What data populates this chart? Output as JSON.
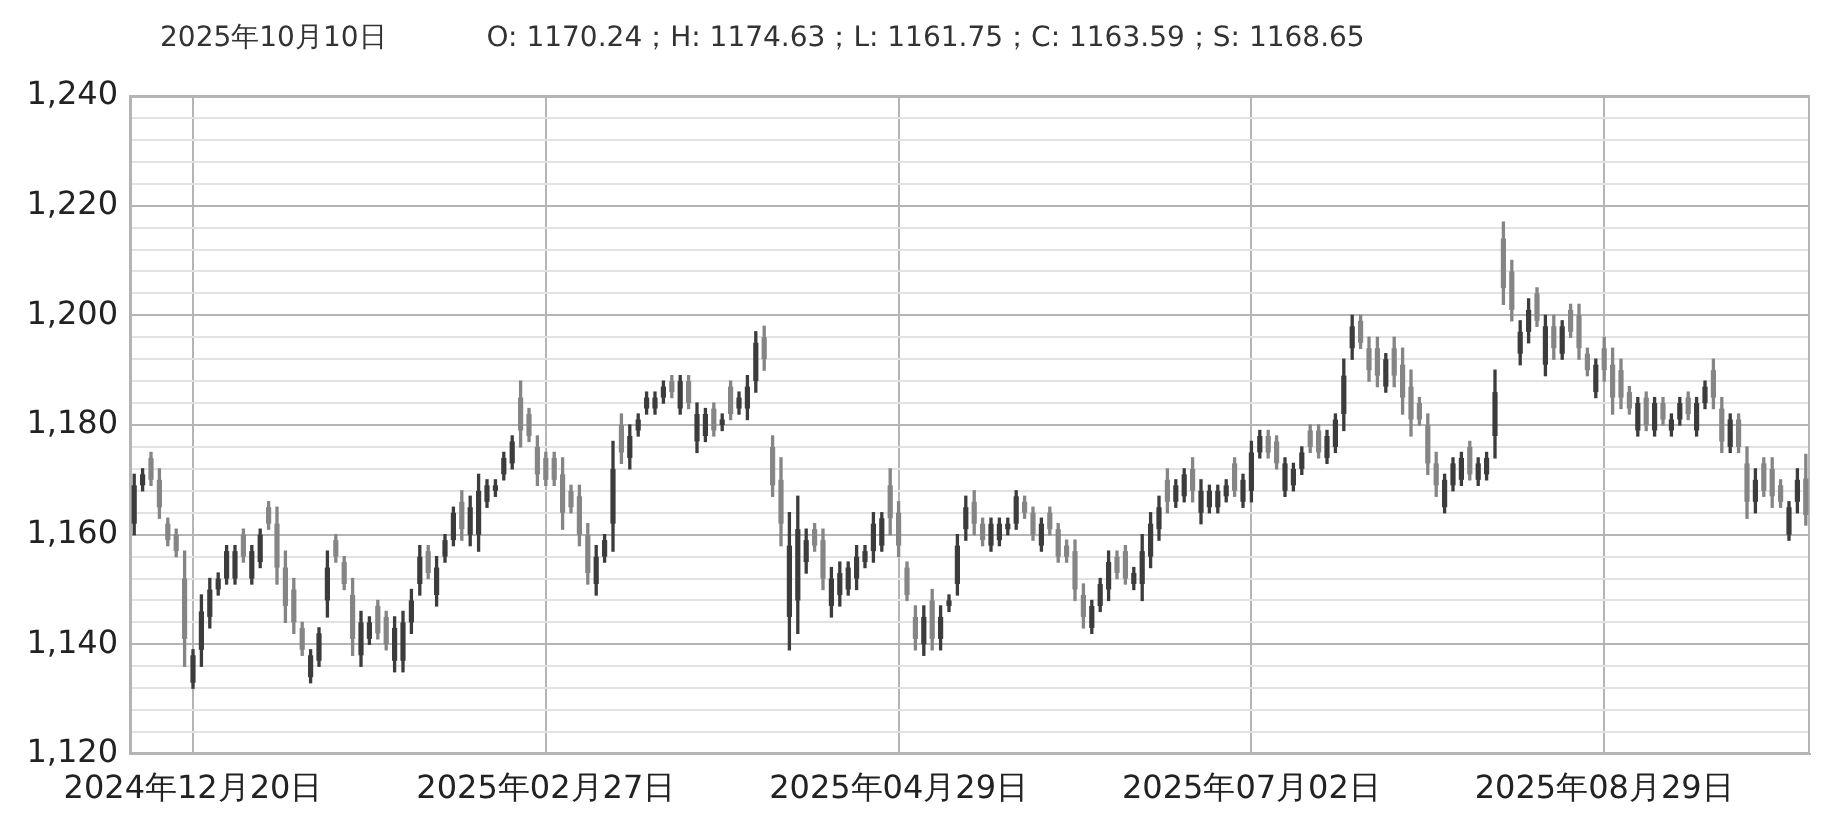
{
  "chart_data": {
    "type": "candlestick",
    "title": "2025年10月10日",
    "subtitle": "O: 1170.24；H: 1174.63；L: 1161.75；C: 1163.59；S: 1168.65",
    "grid": true,
    "ylim": [
      1120,
      1240
    ],
    "yticks": [
      {
        "value": 1120,
        "label": "1,120"
      },
      {
        "value": 1124,
        "label": null
      },
      {
        "value": 1128,
        "label": null
      },
      {
        "value": 1132,
        "label": null
      },
      {
        "value": 1136,
        "label": null
      },
      {
        "value": 1140,
        "label": "1,140"
      },
      {
        "value": 1144,
        "label": null
      },
      {
        "value": 1148,
        "label": null
      },
      {
        "value": 1152,
        "label": null
      },
      {
        "value": 1156,
        "label": null
      },
      {
        "value": 1160,
        "label": "1,160"
      },
      {
        "value": 1164,
        "label": null
      },
      {
        "value": 1168,
        "label": null
      },
      {
        "value": 1172,
        "label": null
      },
      {
        "value": 1176,
        "label": null
      },
      {
        "value": 1180,
        "label": "1,180"
      },
      {
        "value": 1184,
        "label": null
      },
      {
        "value": 1188,
        "label": null
      },
      {
        "value": 1192,
        "label": null
      },
      {
        "value": 1196,
        "label": null
      },
      {
        "value": 1200,
        "label": "1,200"
      },
      {
        "value": 1204,
        "label": null
      },
      {
        "value": 1208,
        "label": null
      },
      {
        "value": 1212,
        "label": null
      },
      {
        "value": 1216,
        "label": null
      },
      {
        "value": 1220,
        "label": "1,220"
      },
      {
        "value": 1224,
        "label": null
      },
      {
        "value": 1228,
        "label": null
      },
      {
        "value": 1232,
        "label": null
      },
      {
        "value": 1236,
        "label": null
      },
      {
        "value": 1240,
        "label": "1,240"
      }
    ],
    "categories": [
      null,
      null,
      null,
      null,
      null,
      null,
      null,
      "2024年12月20日",
      null,
      null,
      null,
      null,
      null,
      null,
      null,
      null,
      null,
      null,
      null,
      null,
      null,
      null,
      null,
      null,
      null,
      null,
      null,
      null,
      null,
      null,
      null,
      null,
      null,
      null,
      null,
      null,
      null,
      null,
      null,
      null,
      null,
      null,
      null,
      null,
      null,
      null,
      null,
      null,
      null,
      "2025年02月27日",
      null,
      null,
      null,
      null,
      null,
      null,
      null,
      null,
      null,
      null,
      null,
      null,
      null,
      null,
      null,
      null,
      null,
      null,
      null,
      null,
      null,
      null,
      null,
      null,
      null,
      null,
      null,
      null,
      null,
      null,
      null,
      null,
      null,
      null,
      null,
      null,
      null,
      null,
      null,
      null,
      null,
      "2025年04月29日",
      null,
      null,
      null,
      null,
      null,
      null,
      null,
      null,
      null,
      null,
      null,
      null,
      null,
      null,
      null,
      null,
      null,
      null,
      null,
      null,
      null,
      null,
      null,
      null,
      null,
      null,
      null,
      null,
      null,
      null,
      null,
      null,
      null,
      null,
      null,
      null,
      null,
      null,
      null,
      null,
      null,
      "2025年07月02日",
      null,
      null,
      null,
      null,
      null,
      null,
      null,
      null,
      null,
      null,
      null,
      null,
      null,
      null,
      null,
      null,
      null,
      null,
      null,
      null,
      null,
      null,
      null,
      null,
      null,
      null,
      null,
      null,
      null,
      null,
      null,
      null,
      null,
      null,
      null,
      null,
      null,
      null,
      null,
      null,
      null,
      "2025年08月29日",
      null,
      null,
      null,
      null,
      null,
      null,
      null,
      null,
      null,
      null,
      null,
      null,
      null,
      null,
      null,
      null,
      null,
      null,
      null,
      null,
      null,
      null,
      null,
      null
    ],
    "colors": [
      "#3c3c3c",
      "#3c3c3c",
      "#858585",
      "#858585",
      "#858585",
      "#858585",
      "#858585",
      "#3c3c3c",
      "#3c3c3c",
      "#3c3c3c",
      "#3c3c3c",
      "#3c3c3c",
      "#3c3c3c",
      "#858585",
      "#3c3c3c",
      "#3c3c3c",
      "#858585",
      "#858585",
      "#858585",
      "#858585",
      "#858585",
      "#3c3c3c",
      "#3c3c3c",
      "#3c3c3c",
      "#858585",
      "#858585",
      "#858585",
      "#3c3c3c",
      "#3c3c3c",
      "#858585",
      "#858585",
      "#3c3c3c",
      "#3c3c3c",
      "#3c3c3c",
      "#3c3c3c",
      "#858585",
      "#3c3c3c",
      "#3c3c3c",
      "#3c3c3c",
      "#858585",
      "#3c3c3c",
      "#3c3c3c",
      "#3c3c3c",
      "#3c3c3c",
      "#3c3c3c",
      "#3c3c3c",
      "#858585",
      "#858585",
      "#858585",
      "#858585",
      "#858585",
      "#858585",
      "#858585",
      "#858585",
      "#858585",
      "#3c3c3c",
      "#3c3c3c",
      "#3c3c3c",
      "#858585",
      "#3c3c3c",
      "#3c3c3c",
      "#3c3c3c",
      "#3c3c3c",
      "#3c3c3c",
      "#858585",
      "#3c3c3c",
      "#858585",
      "#3c3c3c",
      "#3c3c3c",
      "#858585",
      "#3c3c3c",
      "#858585",
      "#3c3c3c",
      "#3c3c3c",
      "#3c3c3c",
      "#858585",
      "#858585",
      "#858585",
      "#3c3c3c",
      "#3c3c3c",
      "#3c3c3c",
      "#858585",
      "#858585",
      "#3c3c3c",
      "#3c3c3c",
      "#3c3c3c",
      "#3c3c3c",
      "#3c3c3c",
      "#3c3c3c",
      "#3c3c3c",
      "#858585",
      "#858585",
      "#858585",
      "#858585",
      "#3c3c3c",
      "#858585",
      "#3c3c3c",
      "#3c3c3c",
      "#3c3c3c",
      "#3c3c3c",
      "#858585",
      "#858585",
      "#3c3c3c",
      "#3c3c3c",
      "#3c3c3c",
      "#3c3c3c",
      "#858585",
      "#858585",
      "#3c3c3c",
      "#858585",
      "#858585",
      "#858585",
      "#858585",
      "#858585",
      "#3c3c3c",
      "#3c3c3c",
      "#3c3c3c",
      "#858585",
      "#858585",
      "#3c3c3c",
      "#3c3c3c",
      "#3c3c3c",
      "#3c3c3c",
      "#858585",
      "#3c3c3c",
      "#3c3c3c",
      "#858585",
      "#3c3c3c",
      "#3c3c3c",
      "#3c3c3c",
      "#3c3c3c",
      "#858585",
      "#3c3c3c",
      "#3c3c3c",
      "#3c3c3c",
      "#858585",
      "#858585",
      "#3c3c3c",
      "#3c3c3c",
      "#3c3c3c",
      "#858585",
      "#858585",
      "#3c3c3c",
      "#3c3c3c",
      "#3c3c3c",
      "#3c3c3c",
      "#858585",
      "#858585",
      "#858585",
      "#3c3c3c",
      "#858585",
      "#858585",
      "#858585",
      "#858585",
      "#858585",
      "#858585",
      "#3c3c3c",
      "#3c3c3c",
      "#3c3c3c",
      "#858585",
      "#3c3c3c",
      "#3c3c3c",
      "#3c3c3c",
      "#858585",
      "#858585",
      "#3c3c3c",
      "#3c3c3c",
      "#858585",
      "#3c3c3c",
      "#858585",
      "#3c3c3c",
      "#858585",
      "#858585",
      "#858585",
      "#3c3c3c",
      "#858585",
      "#858585",
      "#858585",
      "#858585",
      "#3c3c3c",
      "#858585",
      "#3c3c3c",
      "#858585",
      "#3c3c3c",
      "#3c3c3c",
      "#858585",
      "#3c3c3c",
      "#3c3c3c",
      "#858585",
      "#858585",
      "#3c3c3c",
      "#858585",
      "#858585",
      "#3c3c3c",
      "#858585",
      "#858585",
      "#858585",
      "#3c3c3c",
      "#3c3c3c",
      "#858585"
    ],
    "ohlc": [
      [
        1162,
        1171,
        1160,
        1169
      ],
      [
        1169,
        1172,
        1168,
        1171
      ],
      [
        1174,
        1175,
        1169,
        1170
      ],
      [
        1170,
        1172,
        1163,
        1165
      ],
      [
        1162,
        1163,
        1158,
        1159
      ],
      [
        1160,
        1161,
        1156,
        1157
      ],
      [
        1152,
        1157,
        1136,
        1141
      ],
      [
        1133,
        1139,
        1132,
        1138
      ],
      [
        1139,
        1149,
        1136,
        1146
      ],
      [
        1145,
        1152,
        1143,
        1150
      ],
      [
        1150,
        1153,
        1149,
        1152
      ],
      [
        1152,
        1158,
        1151,
        1157
      ],
      [
        1152,
        1158,
        1151,
        1157
      ],
      [
        1160,
        1161,
        1155,
        1156
      ],
      [
        1152,
        1158,
        1151,
        1157
      ],
      [
        1155,
        1161,
        1154,
        1160
      ],
      [
        1165,
        1166,
        1161,
        1162
      ],
      [
        1162,
        1165,
        1151,
        1154
      ],
      [
        1154,
        1157,
        1144,
        1147
      ],
      [
        1150,
        1152,
        1142,
        1144
      ],
      [
        1143,
        1144,
        1138,
        1139
      ],
      [
        1134,
        1139,
        1133,
        1138
      ],
      [
        1137,
        1143,
        1136,
        1142
      ],
      [
        1148,
        1157,
        1145,
        1154
      ],
      [
        1159,
        1160,
        1155,
        1156
      ],
      [
        1155,
        1156,
        1150,
        1151
      ],
      [
        1149,
        1152,
        1138,
        1141
      ],
      [
        1138,
        1146,
        1136,
        1144
      ],
      [
        1141,
        1145,
        1140,
        1144
      ],
      [
        1147,
        1148,
        1141,
        1142
      ],
      [
        1145,
        1146,
        1139,
        1140
      ],
      [
        1137,
        1145,
        1135,
        1143
      ],
      [
        1137,
        1146,
        1135,
        1144
      ],
      [
        1144,
        1150,
        1142,
        1148
      ],
      [
        1151,
        1158,
        1149,
        1156
      ],
      [
        1157,
        1158,
        1152,
        1153
      ],
      [
        1149,
        1156,
        1147,
        1154
      ],
      [
        1156,
        1160,
        1155,
        1159
      ],
      [
        1159,
        1165,
        1158,
        1164
      ],
      [
        1166,
        1168,
        1159,
        1161
      ],
      [
        1160,
        1167,
        1158,
        1165
      ],
      [
        1160,
        1171,
        1157,
        1168
      ],
      [
        1166,
        1170,
        1165,
        1169
      ],
      [
        1168,
        1170,
        1167,
        1169
      ],
      [
        1171,
        1175,
        1170,
        1174
      ],
      [
        1173,
        1178,
        1172,
        1177
      ],
      [
        1185,
        1188,
        1176,
        1179
      ],
      [
        1182,
        1183,
        1177,
        1178
      ],
      [
        1176,
        1178,
        1169,
        1171
      ],
      [
        1174,
        1175,
        1169,
        1170
      ],
      [
        1174,
        1175,
        1169,
        1170
      ],
      [
        1171,
        1174,
        1161,
        1164
      ],
      [
        1168,
        1169,
        1164,
        1165
      ],
      [
        1167,
        1169,
        1158,
        1160
      ],
      [
        1160,
        1162,
        1151,
        1153
      ],
      [
        1151,
        1158,
        1149,
        1156
      ],
      [
        1156,
        1160,
        1155,
        1159
      ],
      [
        1162,
        1177,
        1157,
        1172
      ],
      [
        1180,
        1182,
        1173,
        1175
      ],
      [
        1174,
        1180,
        1172,
        1178
      ],
      [
        1179,
        1182,
        1178,
        1181
      ],
      [
        1183,
        1186,
        1182,
        1185
      ],
      [
        1183,
        1186,
        1182,
        1185
      ],
      [
        1185,
        1188,
        1184,
        1187
      ],
      [
        1188,
        1189,
        1185,
        1186
      ],
      [
        1183,
        1189,
        1182,
        1188
      ],
      [
        1188,
        1189,
        1183,
        1184
      ],
      [
        1177,
        1184,
        1175,
        1182
      ],
      [
        1178,
        1183,
        1177,
        1182
      ],
      [
        1183,
        1184,
        1178,
        1179
      ],
      [
        1180,
        1182,
        1179,
        1181
      ],
      [
        1187,
        1188,
        1181,
        1182
      ],
      [
        1183,
        1186,
        1182,
        1185
      ],
      [
        1183,
        1189,
        1181,
        1187
      ],
      [
        1188,
        1197,
        1186,
        1195
      ],
      [
        1196,
        1198,
        1190,
        1192
      ],
      [
        1176,
        1178,
        1167,
        1169
      ],
      [
        1170,
        1174,
        1158,
        1162
      ],
      [
        1145,
        1164,
        1139,
        1158
      ],
      [
        1148,
        1167,
        1142,
        1161
      ],
      [
        1155,
        1161,
        1153,
        1159
      ],
      [
        1161,
        1162,
        1157,
        1158
      ],
      [
        1159,
        1161,
        1150,
        1152
      ],
      [
        1147,
        1154,
        1145,
        1152
      ],
      [
        1149,
        1155,
        1147,
        1153
      ],
      [
        1150,
        1155,
        1149,
        1154
      ],
      [
        1152,
        1158,
        1150,
        1156
      ],
      [
        1155,
        1158,
        1154,
        1157
      ],
      [
        1157,
        1164,
        1155,
        1162
      ],
      [
        1158,
        1164,
        1157,
        1163
      ],
      [
        1169,
        1172,
        1160,
        1163
      ],
      [
        1164,
        1166,
        1156,
        1158
      ],
      [
        1154,
        1155,
        1148,
        1149
      ],
      [
        1145,
        1147,
        1139,
        1141
      ],
      [
        1140,
        1147,
        1138,
        1145
      ],
      [
        1148,
        1150,
        1139,
        1141
      ],
      [
        1141,
        1147,
        1139,
        1145
      ],
      [
        1147,
        1149,
        1146,
        1148
      ],
      [
        1151,
        1160,
        1149,
        1158
      ],
      [
        1161,
        1167,
        1159,
        1165
      ],
      [
        1166,
        1168,
        1160,
        1162
      ],
      [
        1162,
        1163,
        1158,
        1159
      ],
      [
        1158,
        1163,
        1157,
        1162
      ],
      [
        1159,
        1163,
        1158,
        1162
      ],
      [
        1161,
        1163,
        1160,
        1162
      ],
      [
        1162,
        1168,
        1161,
        1167
      ],
      [
        1166,
        1167,
        1163,
        1164
      ],
      [
        1164,
        1165,
        1159,
        1160
      ],
      [
        1158,
        1163,
        1157,
        1162
      ],
      [
        1164,
        1165,
        1160,
        1161
      ],
      [
        1161,
        1162,
        1155,
        1156
      ],
      [
        1158,
        1159,
        1155,
        1156
      ],
      [
        1157,
        1159,
        1148,
        1150
      ],
      [
        1149,
        1151,
        1143,
        1145
      ],
      [
        1143,
        1148,
        1142,
        1147
      ],
      [
        1147,
        1152,
        1146,
        1151
      ],
      [
        1150,
        1157,
        1148,
        1155
      ],
      [
        1156,
        1157,
        1152,
        1153
      ],
      [
        1157,
        1158,
        1151,
        1152
      ],
      [
        1151,
        1154,
        1150,
        1153
      ],
      [
        1151,
        1160,
        1148,
        1157
      ],
      [
        1156,
        1164,
        1154,
        1162
      ],
      [
        1161,
        1167,
        1159,
        1165
      ],
      [
        1170,
        1172,
        1164,
        1166
      ],
      [
        1166,
        1170,
        1165,
        1169
      ],
      [
        1167,
        1172,
        1166,
        1171
      ],
      [
        1172,
        1174,
        1166,
        1168
      ],
      [
        1164,
        1170,
        1162,
        1168
      ],
      [
        1165,
        1169,
        1164,
        1168
      ],
      [
        1165,
        1169,
        1164,
        1168
      ],
      [
        1167,
        1170,
        1166,
        1169
      ],
      [
        1173,
        1174,
        1167,
        1168
      ],
      [
        1166,
        1171,
        1165,
        1170
      ],
      [
        1168,
        1177,
        1166,
        1175
      ],
      [
        1175,
        1179,
        1174,
        1178
      ],
      [
        1178,
        1179,
        1174,
        1175
      ],
      [
        1177,
        1178,
        1172,
        1173
      ],
      [
        1168,
        1174,
        1167,
        1173
      ],
      [
        1169,
        1173,
        1168,
        1172
      ],
      [
        1172,
        1176,
        1171,
        1175
      ],
      [
        1179,
        1180,
        1175,
        1176
      ],
      [
        1179,
        1180,
        1174,
        1175
      ],
      [
        1174,
        1179,
        1173,
        1178
      ],
      [
        1176,
        1182,
        1175,
        1181
      ],
      [
        1182,
        1192,
        1179,
        1189
      ],
      [
        1194,
        1200,
        1192,
        1198
      ],
      [
        1199,
        1200,
        1194,
        1195
      ],
      [
        1194,
        1196,
        1188,
        1190
      ],
      [
        1194,
        1196,
        1187,
        1189
      ],
      [
        1187,
        1193,
        1186,
        1192
      ],
      [
        1194,
        1196,
        1187,
        1189
      ],
      [
        1191,
        1194,
        1182,
        1185
      ],
      [
        1187,
        1190,
        1178,
        1181
      ],
      [
        1184,
        1185,
        1180,
        1181
      ],
      [
        1180,
        1182,
        1171,
        1173
      ],
      [
        1173,
        1175,
        1167,
        1169
      ],
      [
        1165,
        1171,
        1164,
        1170
      ],
      [
        1169,
        1174,
        1168,
        1173
      ],
      [
        1170,
        1175,
        1169,
        1174
      ],
      [
        1176,
        1177,
        1170,
        1171
      ],
      [
        1170,
        1174,
        1169,
        1173
      ],
      [
        1171,
        1175,
        1170,
        1174
      ],
      [
        1178,
        1190,
        1174,
        1186
      ],
      [
        1214,
        1217,
        1202,
        1205
      ],
      [
        1208,
        1210,
        1199,
        1201
      ],
      [
        1193,
        1199,
        1191,
        1197
      ],
      [
        1197,
        1203,
        1195,
        1201
      ],
      [
        1204,
        1205,
        1198,
        1199
      ],
      [
        1191,
        1200,
        1189,
        1198
      ],
      [
        1198,
        1200,
        1192,
        1194
      ],
      [
        1193,
        1199,
        1192,
        1198
      ],
      [
        1201,
        1202,
        1196,
        1197
      ],
      [
        1200,
        1202,
        1192,
        1194
      ],
      [
        1193,
        1194,
        1189,
        1190
      ],
      [
        1186,
        1192,
        1185,
        1191
      ],
      [
        1194,
        1196,
        1188,
        1190
      ],
      [
        1191,
        1194,
        1182,
        1185
      ],
      [
        1190,
        1192,
        1183,
        1185
      ],
      [
        1186,
        1187,
        1182,
        1183
      ],
      [
        1179,
        1185,
        1178,
        1184
      ],
      [
        1185,
        1186,
        1179,
        1180
      ],
      [
        1179,
        1185,
        1178,
        1184
      ],
      [
        1184,
        1185,
        1180,
        1181
      ],
      [
        1179,
        1182,
        1178,
        1181
      ],
      [
        1181,
        1185,
        1180,
        1184
      ],
      [
        1185,
        1186,
        1181,
        1182
      ],
      [
        1179,
        1185,
        1178,
        1184
      ],
      [
        1184,
        1188,
        1183,
        1187
      ],
      [
        1190,
        1192,
        1183,
        1185
      ],
      [
        1183,
        1185,
        1175,
        1177
      ],
      [
        1176,
        1182,
        1175,
        1181
      ],
      [
        1181,
        1182,
        1175,
        1176
      ],
      [
        1173,
        1176,
        1163,
        1166
      ],
      [
        1166,
        1172,
        1164,
        1170
      ],
      [
        1173,
        1174,
        1167,
        1168
      ],
      [
        1172,
        1174,
        1165,
        1167
      ],
      [
        1169,
        1170,
        1165,
        1166
      ],
      [
        1160,
        1166,
        1159,
        1165
      ],
      [
        1166,
        1172,
        1164,
        1170
      ],
      [
        1170.24,
        1174.63,
        1161.75,
        1163.59
      ]
    ]
  }
}
